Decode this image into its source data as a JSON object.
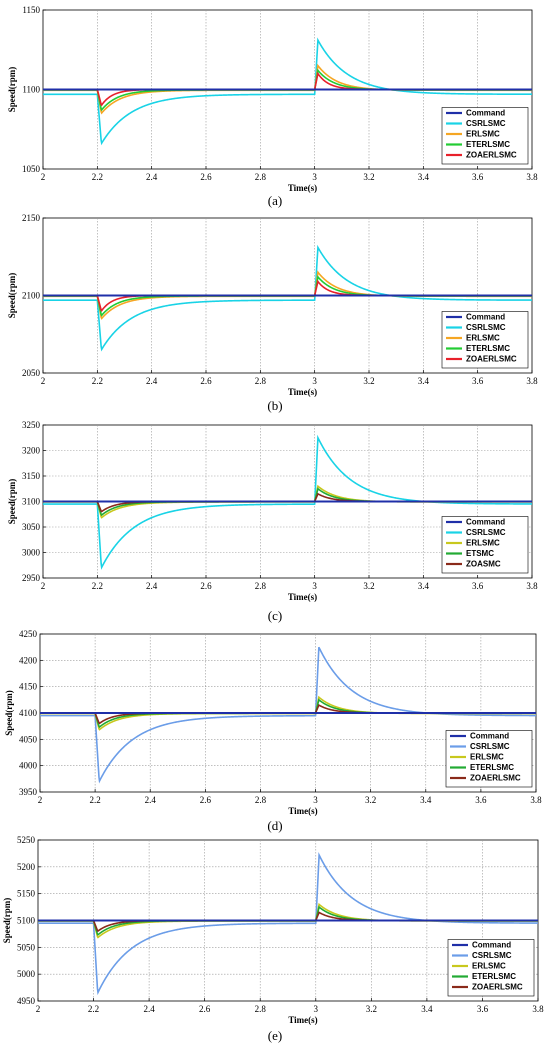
{
  "chart_data": [
    {
      "caption": "(a)",
      "type": "line",
      "xlabel": "Time(s)",
      "ylabel": "Speed(rpm)",
      "xlim": [
        2,
        3.8
      ],
      "ylim": [
        1050,
        1150
      ],
      "xticks": [
        2,
        2.2,
        2.4,
        2.6,
        2.8,
        3,
        3.2,
        3.4,
        3.6,
        3.8
      ],
      "yticks": [
        1050,
        1100,
        1150
      ],
      "grid": true,
      "legend": "bottom-right",
      "command": 1100,
      "series": [
        {
          "name": "Command",
          "color": "#1f2fa8",
          "steady_offset": 0,
          "dip": 0,
          "peak": 0,
          "tau": 0.05
        },
        {
          "name": "CSRLSMC",
          "color": "#19d3e6",
          "steady_offset": -3,
          "dip": 1066,
          "peak": 1131,
          "tau": 0.11
        },
        {
          "name": "ERLSMC",
          "color": "#f5a623",
          "steady_offset": -0.5,
          "dip": 1085,
          "peak": 1115,
          "tau": 0.07
        },
        {
          "name": "ETERLSMC",
          "color": "#22cc33",
          "steady_offset": -0.3,
          "dip": 1087,
          "peak": 1112,
          "tau": 0.06
        },
        {
          "name": "ZOAERLSMC",
          "color": "#e8202a",
          "steady_offset": 0,
          "dip": 1090,
          "peak": 1110,
          "tau": 0.04
        }
      ]
    },
    {
      "caption": "(b)",
      "type": "line",
      "xlabel": "Time(s)",
      "ylabel": "Speed(rpm)",
      "xlim": [
        2,
        3.8
      ],
      "ylim": [
        2050,
        2150
      ],
      "xticks": [
        2,
        2.2,
        2.4,
        2.6,
        2.8,
        3,
        3.2,
        3.4,
        3.6,
        3.8
      ],
      "yticks": [
        2050,
        2100,
        2150
      ],
      "grid": true,
      "legend": "bottom-right",
      "command": 2100,
      "series": [
        {
          "name": "Command",
          "color": "#1f2fa8",
          "steady_offset": 0,
          "dip": 0,
          "peak": 0,
          "tau": 0.05
        },
        {
          "name": "CSRLSMC",
          "color": "#19d3e6",
          "steady_offset": -3,
          "dip": 2065,
          "peak": 2131,
          "tau": 0.11
        },
        {
          "name": "ERLSMC",
          "color": "#f5a623",
          "steady_offset": -0.5,
          "dip": 2085,
          "peak": 2115,
          "tau": 0.07
        },
        {
          "name": "ETERLSMC",
          "color": "#22cc33",
          "steady_offset": -0.3,
          "dip": 2087,
          "peak": 2112,
          "tau": 0.06
        },
        {
          "name": "ZOAERLSMC",
          "color": "#e8202a",
          "steady_offset": 0,
          "dip": 2090,
          "peak": 2109,
          "tau": 0.04
        }
      ]
    },
    {
      "caption": "(c)",
      "type": "line",
      "xlabel": "Time(s)",
      "ylabel": "Speed(rpm)",
      "xlim": [
        2,
        3.8
      ],
      "ylim": [
        2950,
        3250
      ],
      "xticks": [
        2,
        2.2,
        2.4,
        2.6,
        2.8,
        3,
        3.2,
        3.4,
        3.6,
        3.8
      ],
      "yticks": [
        2950,
        3000,
        3050,
        3100,
        3150,
        3200,
        3250
      ],
      "grid": true,
      "legend": "bottom-right",
      "command": 3100,
      "series": [
        {
          "name": "Command",
          "color": "#1f2fa8",
          "steady_offset": 0,
          "dip": 0,
          "peak": 0,
          "tau": 0.05
        },
        {
          "name": "CSRLSMC",
          "color": "#19d3e6",
          "steady_offset": -5,
          "dip": 2970,
          "peak": 3225,
          "tau": 0.12
        },
        {
          "name": "ERLSMC",
          "color": "#c8c81e",
          "steady_offset": -1,
          "dip": 3068,
          "peak": 3130,
          "tau": 0.07
        },
        {
          "name": "ETSMC",
          "color": "#22aa33",
          "steady_offset": -0.5,
          "dip": 3073,
          "peak": 3125,
          "tau": 0.06
        },
        {
          "name": "ZOASMC",
          "color": "#8a2a1a",
          "steady_offset": 0,
          "dip": 3080,
          "peak": 3115,
          "tau": 0.05
        }
      ]
    },
    {
      "caption": "(d)",
      "type": "line",
      "xlabel": "Time(s)",
      "ylabel": "Speed(rpm)",
      "xlim": [
        2,
        3.8
      ],
      "ylim": [
        3950,
        4250
      ],
      "xticks": [
        2,
        2.2,
        2.4,
        2.6,
        2.8,
        3,
        3.2,
        3.4,
        3.6,
        3.8
      ],
      "yticks": [
        3950,
        4000,
        4050,
        4100,
        4150,
        4200,
        4250
      ],
      "grid": true,
      "legend": "bottom-right",
      "command": 4100,
      "series": [
        {
          "name": "Command",
          "color": "#1f2fa8",
          "steady_offset": 0,
          "dip": 0,
          "peak": 0,
          "tau": 0.05
        },
        {
          "name": "CSRLSMC",
          "color": "#6b9de8",
          "steady_offset": -5,
          "dip": 3970,
          "peak": 4225,
          "tau": 0.12
        },
        {
          "name": "ERLSMC",
          "color": "#c8c81e",
          "steady_offset": -1,
          "dip": 4068,
          "peak": 4130,
          "tau": 0.07
        },
        {
          "name": "ETERLSMC",
          "color": "#22aa33",
          "steady_offset": -0.5,
          "dip": 4073,
          "peak": 4125,
          "tau": 0.06
        },
        {
          "name": "ZOAERLSMC",
          "color": "#8a2a1a",
          "steady_offset": 0,
          "dip": 4080,
          "peak": 4115,
          "tau": 0.05
        }
      ]
    },
    {
      "caption": "(e)",
      "type": "line",
      "xlabel": "Time(s)",
      "ylabel": "Speed(rpm)",
      "xlim": [
        2,
        3.8
      ],
      "ylim": [
        4950,
        5250
      ],
      "xticks": [
        2,
        2.2,
        2.4,
        2.6,
        2.8,
        3,
        3.2,
        3.4,
        3.6,
        3.8
      ],
      "yticks": [
        4950,
        5000,
        5050,
        5100,
        5150,
        5200,
        5250
      ],
      "grid": true,
      "legend": "bottom-right",
      "command": 5100,
      "series": [
        {
          "name": "Command",
          "color": "#1f2fa8",
          "steady_offset": 0,
          "dip": 0,
          "peak": 0,
          "tau": 0.05
        },
        {
          "name": "CSRLSMC",
          "color": "#6b9de8",
          "steady_offset": -5,
          "dip": 4965,
          "peak": 5222,
          "tau": 0.12
        },
        {
          "name": "ERLSMC",
          "color": "#c8c81e",
          "steady_offset": -1,
          "dip": 5068,
          "peak": 5130,
          "tau": 0.07
        },
        {
          "name": "ETERLSMC",
          "color": "#22aa33",
          "steady_offset": -0.5,
          "dip": 5073,
          "peak": 5125,
          "tau": 0.06
        },
        {
          "name": "ZOAERLSMC",
          "color": "#8a2a1a",
          "steady_offset": 0,
          "dip": 5080,
          "peak": 5115,
          "tau": 0.05
        }
      ]
    }
  ]
}
